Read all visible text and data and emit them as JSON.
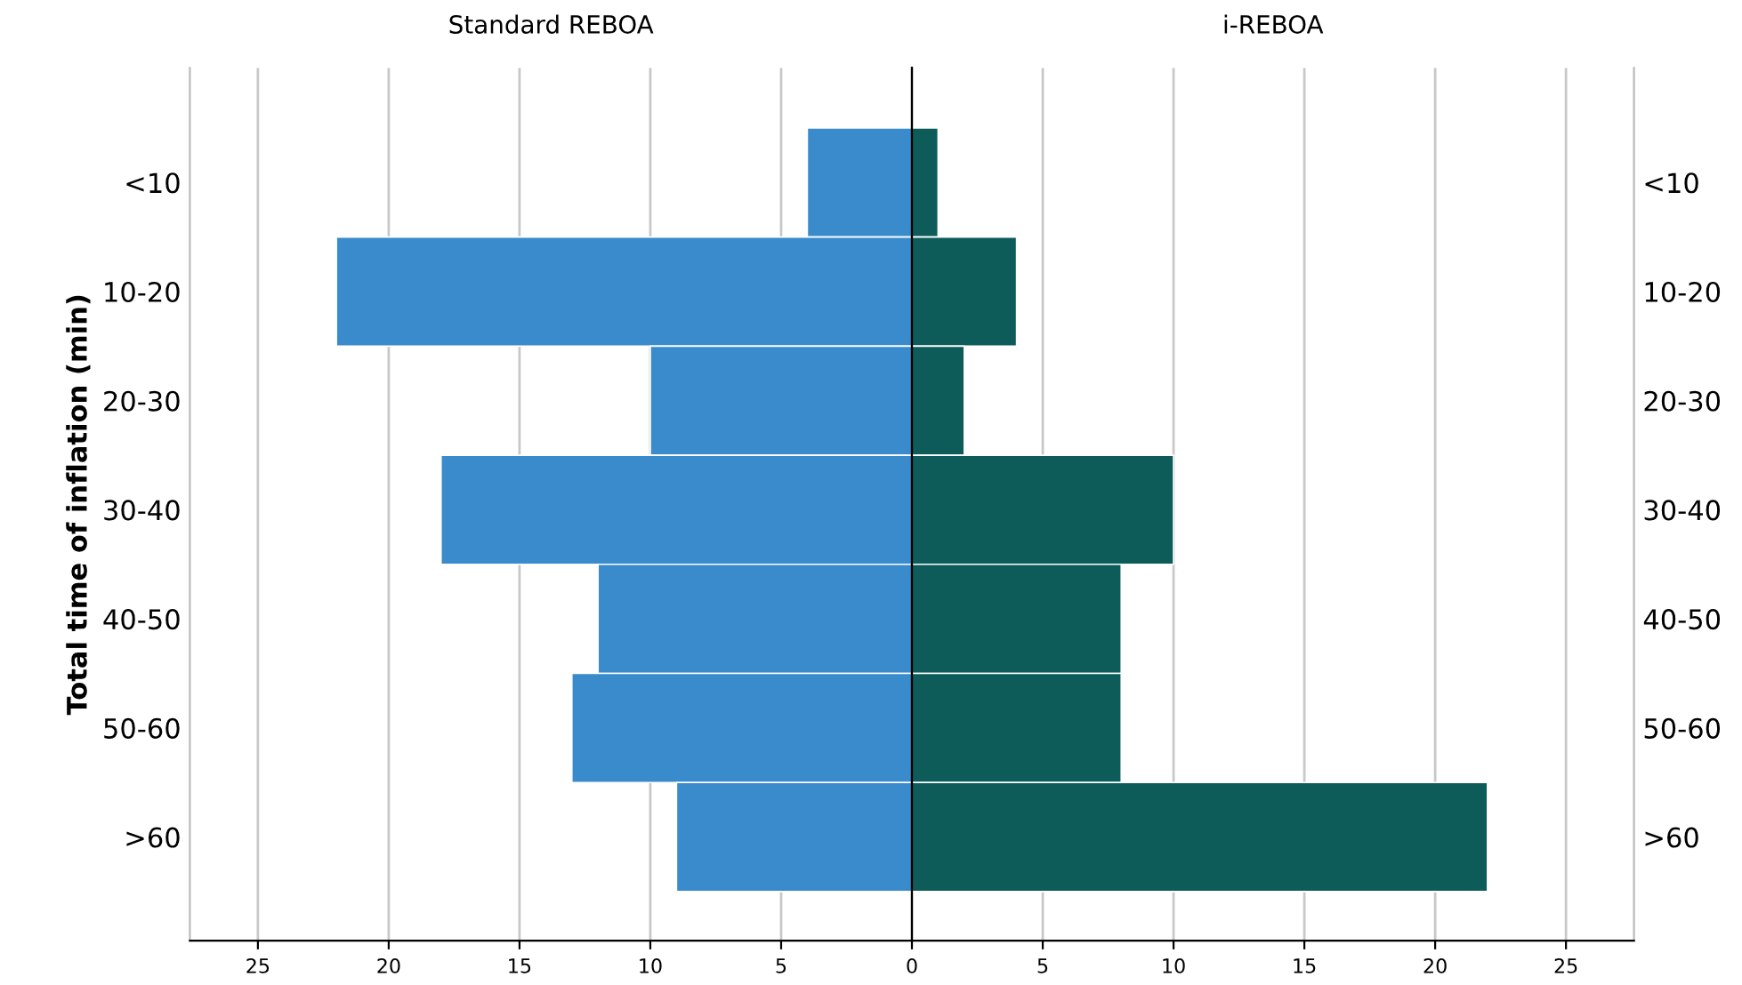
{
  "chart_data": [
    {
      "type": "bar",
      "orientation": "horizontal",
      "title": "Standard REBOA",
      "ylabel": "Total time of inflation (min)",
      "categories": [
        "<10",
        "10-20",
        "20-30",
        "30-40",
        "40-50",
        "50-60",
        ">60"
      ],
      "series": [
        {
          "color": "#3a8bcb",
          "values": [
            4,
            22,
            10,
            18,
            12,
            13,
            9
          ]
        }
      ],
      "xlim": [
        27.6,
        0
      ],
      "xticks": [
        25,
        20,
        15,
        10,
        5
      ],
      "grid": "x"
    },
    {
      "type": "bar",
      "orientation": "horizontal",
      "title": "i-REBOA",
      "categories": [
        "<10",
        "10-20",
        "20-30",
        "30-40",
        "40-50",
        "50-60",
        ">60"
      ],
      "series": [
        {
          "color": "#0e5c5a",
          "values": [
            1,
            4,
            2,
            10,
            8,
            8,
            22
          ]
        }
      ],
      "xlim": [
        0,
        27.6
      ],
      "xticks": [
        0,
        5,
        10,
        15,
        20,
        25
      ],
      "grid": "x"
    }
  ]
}
